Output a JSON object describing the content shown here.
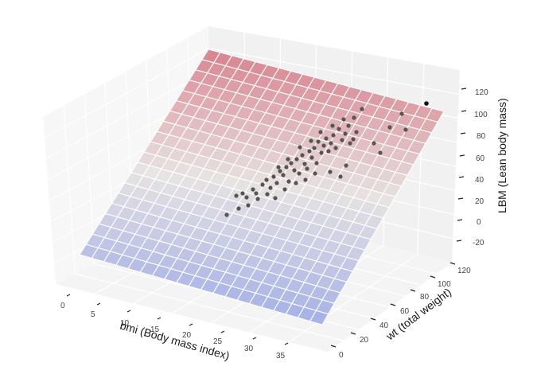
{
  "chart_data": {
    "type": "scatter3d_with_surface",
    "title": "",
    "xlabel": "bmi (Body mass index)",
    "ylabel": "wt (total weight)",
    "zlabel": "LBM (Lean body mass)",
    "x_ticks": [
      "0",
      "5",
      "10",
      "15",
      "20",
      "25",
      "30",
      "35"
    ],
    "y_ticks": [
      "0",
      "20",
      "40",
      "60",
      "80",
      "100",
      "120"
    ],
    "z_ticks": [
      "-20",
      "0",
      "20",
      "40",
      "60",
      "80",
      "100",
      "120"
    ],
    "xlim": [
      -2,
      40
    ],
    "ylim": [
      -5,
      130
    ],
    "zlim": [
      -30,
      130
    ],
    "grid": true,
    "surface": {
      "description": "fitted regression plane LBM ~ bmi + wt",
      "colormap": "coolwarm",
      "alpha": 0.6,
      "grid_rows": 20,
      "grid_cols": 20,
      "z_range_approx": [
        -25,
        125
      ]
    },
    "scatter": {
      "color": "#555555",
      "approx_points": [
        {
          "bmi": 16,
          "wt": 35,
          "lbm": 30
        },
        {
          "bmi": 17,
          "wt": 40,
          "lbm": 33
        },
        {
          "bmi": 18,
          "wt": 45,
          "lbm": 36
        },
        {
          "bmi": 19,
          "wt": 48,
          "lbm": 40
        },
        {
          "bmi": 20,
          "wt": 52,
          "lbm": 42
        },
        {
          "bmi": 20,
          "wt": 55,
          "lbm": 44
        },
        {
          "bmi": 21,
          "wt": 58,
          "lbm": 46
        },
        {
          "bmi": 21,
          "wt": 60,
          "lbm": 48
        },
        {
          "bmi": 22,
          "wt": 62,
          "lbm": 50
        },
        {
          "bmi": 22,
          "wt": 65,
          "lbm": 52
        },
        {
          "bmi": 23,
          "wt": 68,
          "lbm": 54
        },
        {
          "bmi": 23,
          "wt": 70,
          "lbm": 57
        },
        {
          "bmi": 24,
          "wt": 72,
          "lbm": 60
        },
        {
          "bmi": 24,
          "wt": 75,
          "lbm": 62
        },
        {
          "bmi": 25,
          "wt": 78,
          "lbm": 64
        },
        {
          "bmi": 26,
          "wt": 82,
          "lbm": 68
        },
        {
          "bmi": 27,
          "wt": 85,
          "lbm": 72
        },
        {
          "bmi": 28,
          "wt": 90,
          "lbm": 76
        },
        {
          "bmi": 30,
          "wt": 95,
          "lbm": 80
        },
        {
          "bmi": 32,
          "wt": 100,
          "lbm": 85
        },
        {
          "bmi": 34,
          "wt": 110,
          "lbm": 95
        },
        {
          "bmi": 36,
          "wt": 120,
          "lbm": 105
        }
      ]
    },
    "view": {
      "elev": 30,
      "azim": -60
    }
  },
  "axes": {
    "x": {
      "label": "bmi (Body mass index)",
      "ticks": [
        "0",
        "5",
        "10",
        "15",
        "20",
        "25",
        "30",
        "35"
      ]
    },
    "y": {
      "label": "wt (total weight)",
      "ticks": [
        "0",
        "20",
        "40",
        "60",
        "80",
        "100",
        "120"
      ]
    },
    "z": {
      "label": "LBM (Lean body mass)",
      "ticks": [
        "120",
        "100",
        "80",
        "60",
        "40",
        "20",
        "0",
        "-20"
      ]
    }
  },
  "colors": {
    "pane_left": "#f6f6f6",
    "pane_back": "#f0f0f0",
    "pane_floor": "#f3f3f3",
    "grid": "#ffffff",
    "surface_high": "#d4707e",
    "surface_mid": "#e4e0de",
    "surface_low": "#96a3e4",
    "points": "#5a5450"
  }
}
